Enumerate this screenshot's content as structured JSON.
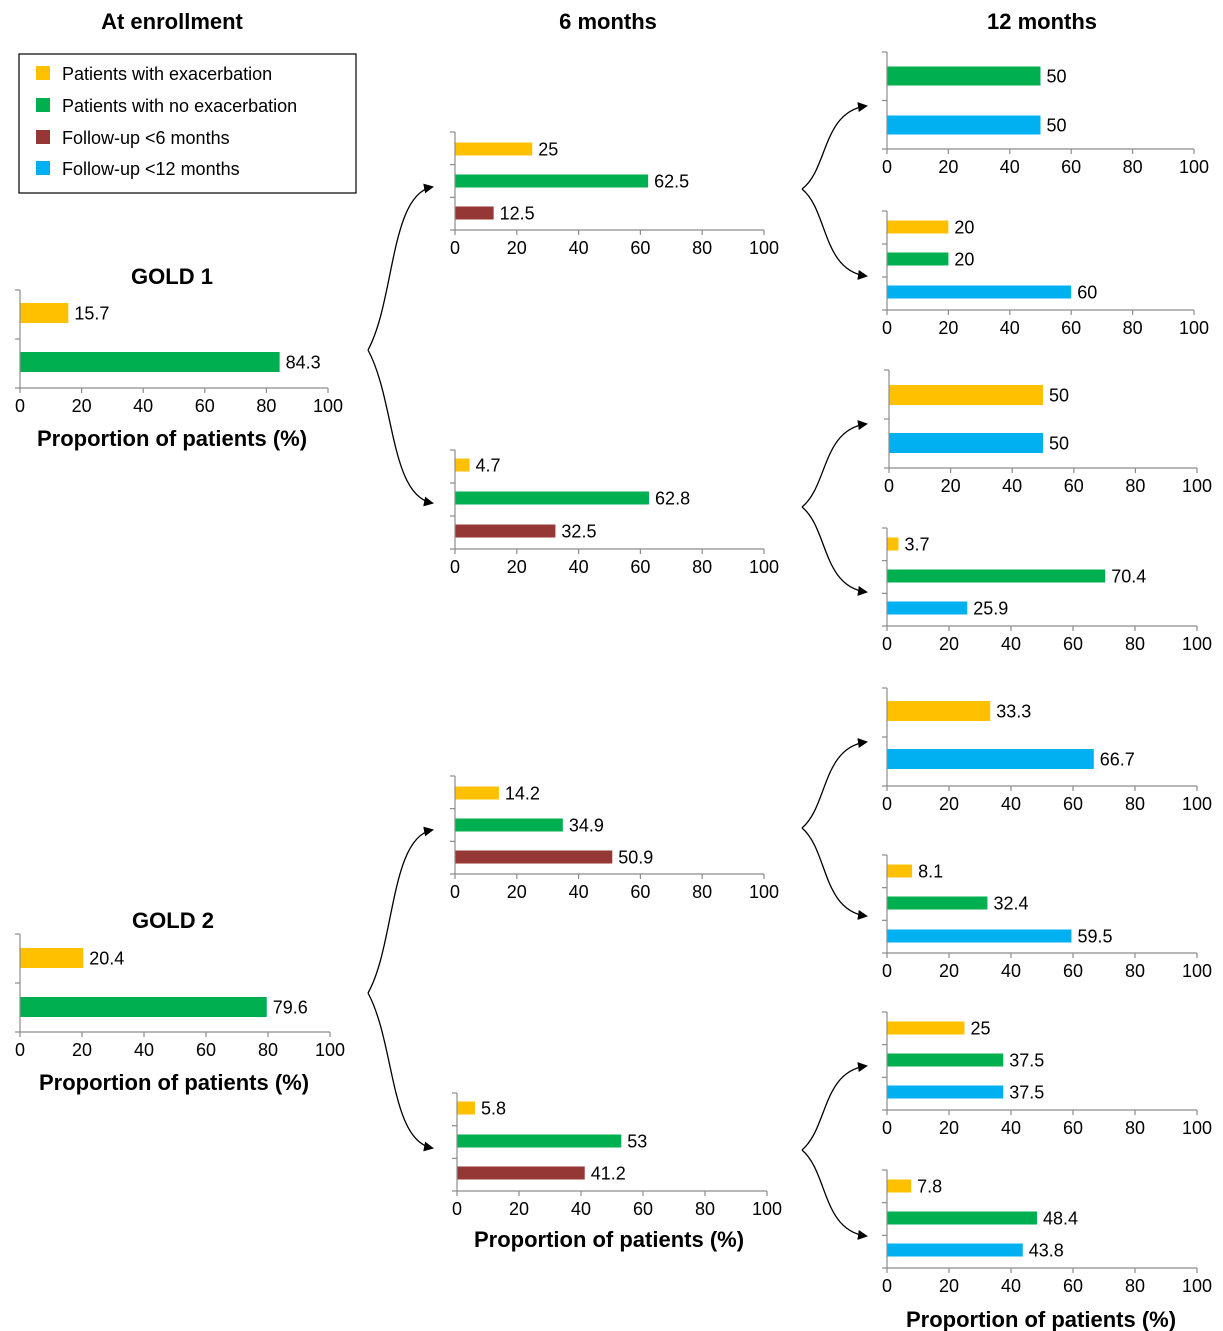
{
  "headers": {
    "enrollment": "At enrollment",
    "six_months": "6 months",
    "twelve_months": "12 months"
  },
  "axis_title": "Proportion of patients (%)",
  "legend": {
    "items": [
      {
        "key": "exac",
        "label": "Patients with exacerbation",
        "color": "#FFC000"
      },
      {
        "key": "noexac",
        "label": "Patients with no exacerbation",
        "color": "#00B050"
      },
      {
        "key": "fu6",
        "label": "Follow-up <6 months",
        "color": "#953735"
      },
      {
        "key": "fu12",
        "label": "Follow-up <12 months",
        "color": "#00B0F0"
      }
    ]
  },
  "chart_data": [
    {
      "id": "gold1_enroll",
      "type": "bar",
      "orientation": "horizontal",
      "title": "GOLD 1",
      "xlim": [
        0,
        100
      ],
      "xticks": [
        0,
        20,
        40,
        60,
        80,
        100
      ],
      "xlabel": "Proportion of patients (%)",
      "bars": [
        {
          "series": "Patients with exacerbation",
          "value": 15.7
        },
        {
          "series": "Patients with no exacerbation",
          "value": 84.3
        }
      ]
    },
    {
      "id": "gold1_6m_exac",
      "type": "bar",
      "orientation": "horizontal",
      "xlim": [
        0,
        100
      ],
      "xticks": [
        0,
        20,
        40,
        60,
        80,
        100
      ],
      "bars": [
        {
          "series": "Patients with exacerbation",
          "value": 25
        },
        {
          "series": "Patients with no exacerbation",
          "value": 62.5
        },
        {
          "series": "Follow-up <6 months",
          "value": 12.5
        }
      ]
    },
    {
      "id": "gold1_6m_noexac",
      "type": "bar",
      "orientation": "horizontal",
      "xlim": [
        0,
        100
      ],
      "xticks": [
        0,
        20,
        40,
        60,
        80,
        100
      ],
      "bars": [
        {
          "series": "Patients with exacerbation",
          "value": 4.7
        },
        {
          "series": "Patients with no exacerbation",
          "value": 62.8
        },
        {
          "series": "Follow-up <6 months",
          "value": 32.5
        }
      ]
    },
    {
      "id": "gold1_12m_a",
      "type": "bar",
      "orientation": "horizontal",
      "xlim": [
        0,
        100
      ],
      "xticks": [
        0,
        20,
        40,
        60,
        80,
        100
      ],
      "bars": [
        {
          "series": "Patients with no exacerbation",
          "value": 50
        },
        {
          "series": "Follow-up <12 months",
          "value": 50
        }
      ]
    },
    {
      "id": "gold1_12m_b",
      "type": "bar",
      "orientation": "horizontal",
      "xlim": [
        0,
        100
      ],
      "xticks": [
        0,
        20,
        40,
        60,
        80,
        100
      ],
      "bars": [
        {
          "series": "Patients with exacerbation",
          "value": 20
        },
        {
          "series": "Patients with no exacerbation",
          "value": 20
        },
        {
          "series": "Follow-up <12 months",
          "value": 60
        }
      ]
    },
    {
      "id": "gold1_12m_c",
      "type": "bar",
      "orientation": "horizontal",
      "xlim": [
        0,
        100
      ],
      "xticks": [
        0,
        20,
        40,
        60,
        80,
        100
      ],
      "bars": [
        {
          "series": "Patients with exacerbation",
          "value": 50
        },
        {
          "series": "Follow-up <12 months",
          "value": 50
        }
      ]
    },
    {
      "id": "gold1_12m_d",
      "type": "bar",
      "orientation": "horizontal",
      "xlim": [
        0,
        100
      ],
      "xticks": [
        0,
        20,
        40,
        60,
        80,
        100
      ],
      "bars": [
        {
          "series": "Patients with exacerbation",
          "value": 3.7
        },
        {
          "series": "Patients with no exacerbation",
          "value": 70.4
        },
        {
          "series": "Follow-up <12 months",
          "value": 25.9
        }
      ]
    },
    {
      "id": "gold2_enroll",
      "type": "bar",
      "orientation": "horizontal",
      "title": "GOLD 2",
      "xlim": [
        0,
        100
      ],
      "xticks": [
        0,
        20,
        40,
        60,
        80,
        100
      ],
      "xlabel": "Proportion of patients (%)",
      "bars": [
        {
          "series": "Patients with exacerbation",
          "value": 20.4
        },
        {
          "series": "Patients with no exacerbation",
          "value": 79.6
        }
      ]
    },
    {
      "id": "gold2_6m_exac",
      "type": "bar",
      "orientation": "horizontal",
      "xlim": [
        0,
        100
      ],
      "xticks": [
        0,
        20,
        40,
        60,
        80,
        100
      ],
      "bars": [
        {
          "series": "Patients with exacerbation",
          "value": 14.2
        },
        {
          "series": "Patients with no exacerbation",
          "value": 34.9
        },
        {
          "series": "Follow-up <6 months",
          "value": 50.9
        }
      ]
    },
    {
      "id": "gold2_6m_noexac",
      "type": "bar",
      "orientation": "horizontal",
      "xlim": [
        0,
        100
      ],
      "xticks": [
        0,
        20,
        40,
        60,
        80,
        100
      ],
      "xlabel": "Proportion of patients (%)",
      "bars": [
        {
          "series": "Patients with exacerbation",
          "value": 5.8
        },
        {
          "series": "Patients with no exacerbation",
          "value": 53
        },
        {
          "series": "Follow-up <6 months",
          "value": 41.2
        }
      ]
    },
    {
      "id": "gold2_12m_a",
      "type": "bar",
      "orientation": "horizontal",
      "xlim": [
        0,
        100
      ],
      "xticks": [
        0,
        20,
        40,
        60,
        80,
        100
      ],
      "bars": [
        {
          "series": "Patients with exacerbation",
          "value": 33.3
        },
        {
          "series": "Follow-up <12 months",
          "value": 66.7
        }
      ]
    },
    {
      "id": "gold2_12m_b",
      "type": "bar",
      "orientation": "horizontal",
      "xlim": [
        0,
        100
      ],
      "xticks": [
        0,
        20,
        40,
        60,
        80,
        100
      ],
      "bars": [
        {
          "series": "Patients with exacerbation",
          "value": 8.1
        },
        {
          "series": "Patients with no exacerbation",
          "value": 32.4
        },
        {
          "series": "Follow-up <12 months",
          "value": 59.5
        }
      ]
    },
    {
      "id": "gold2_12m_c",
      "type": "bar",
      "orientation": "horizontal",
      "xlim": [
        0,
        100
      ],
      "xticks": [
        0,
        20,
        40,
        60,
        80,
        100
      ],
      "bars": [
        {
          "series": "Patients with exacerbation",
          "value": 25
        },
        {
          "series": "Patients with no exacerbation",
          "value": 37.5
        },
        {
          "series": "Follow-up <12 months",
          "value": 37.5
        }
      ]
    },
    {
      "id": "gold2_12m_d",
      "type": "bar",
      "orientation": "horizontal",
      "xlim": [
        0,
        100
      ],
      "xticks": [
        0,
        20,
        40,
        60,
        80,
        100
      ],
      "xlabel": "Proportion of patients (%)",
      "bars": [
        {
          "series": "Patients with exacerbation",
          "value": 7.8
        },
        {
          "series": "Patients with no exacerbation",
          "value": 48.4
        },
        {
          "series": "Follow-up <12 months",
          "value": 43.8
        }
      ]
    }
  ]
}
